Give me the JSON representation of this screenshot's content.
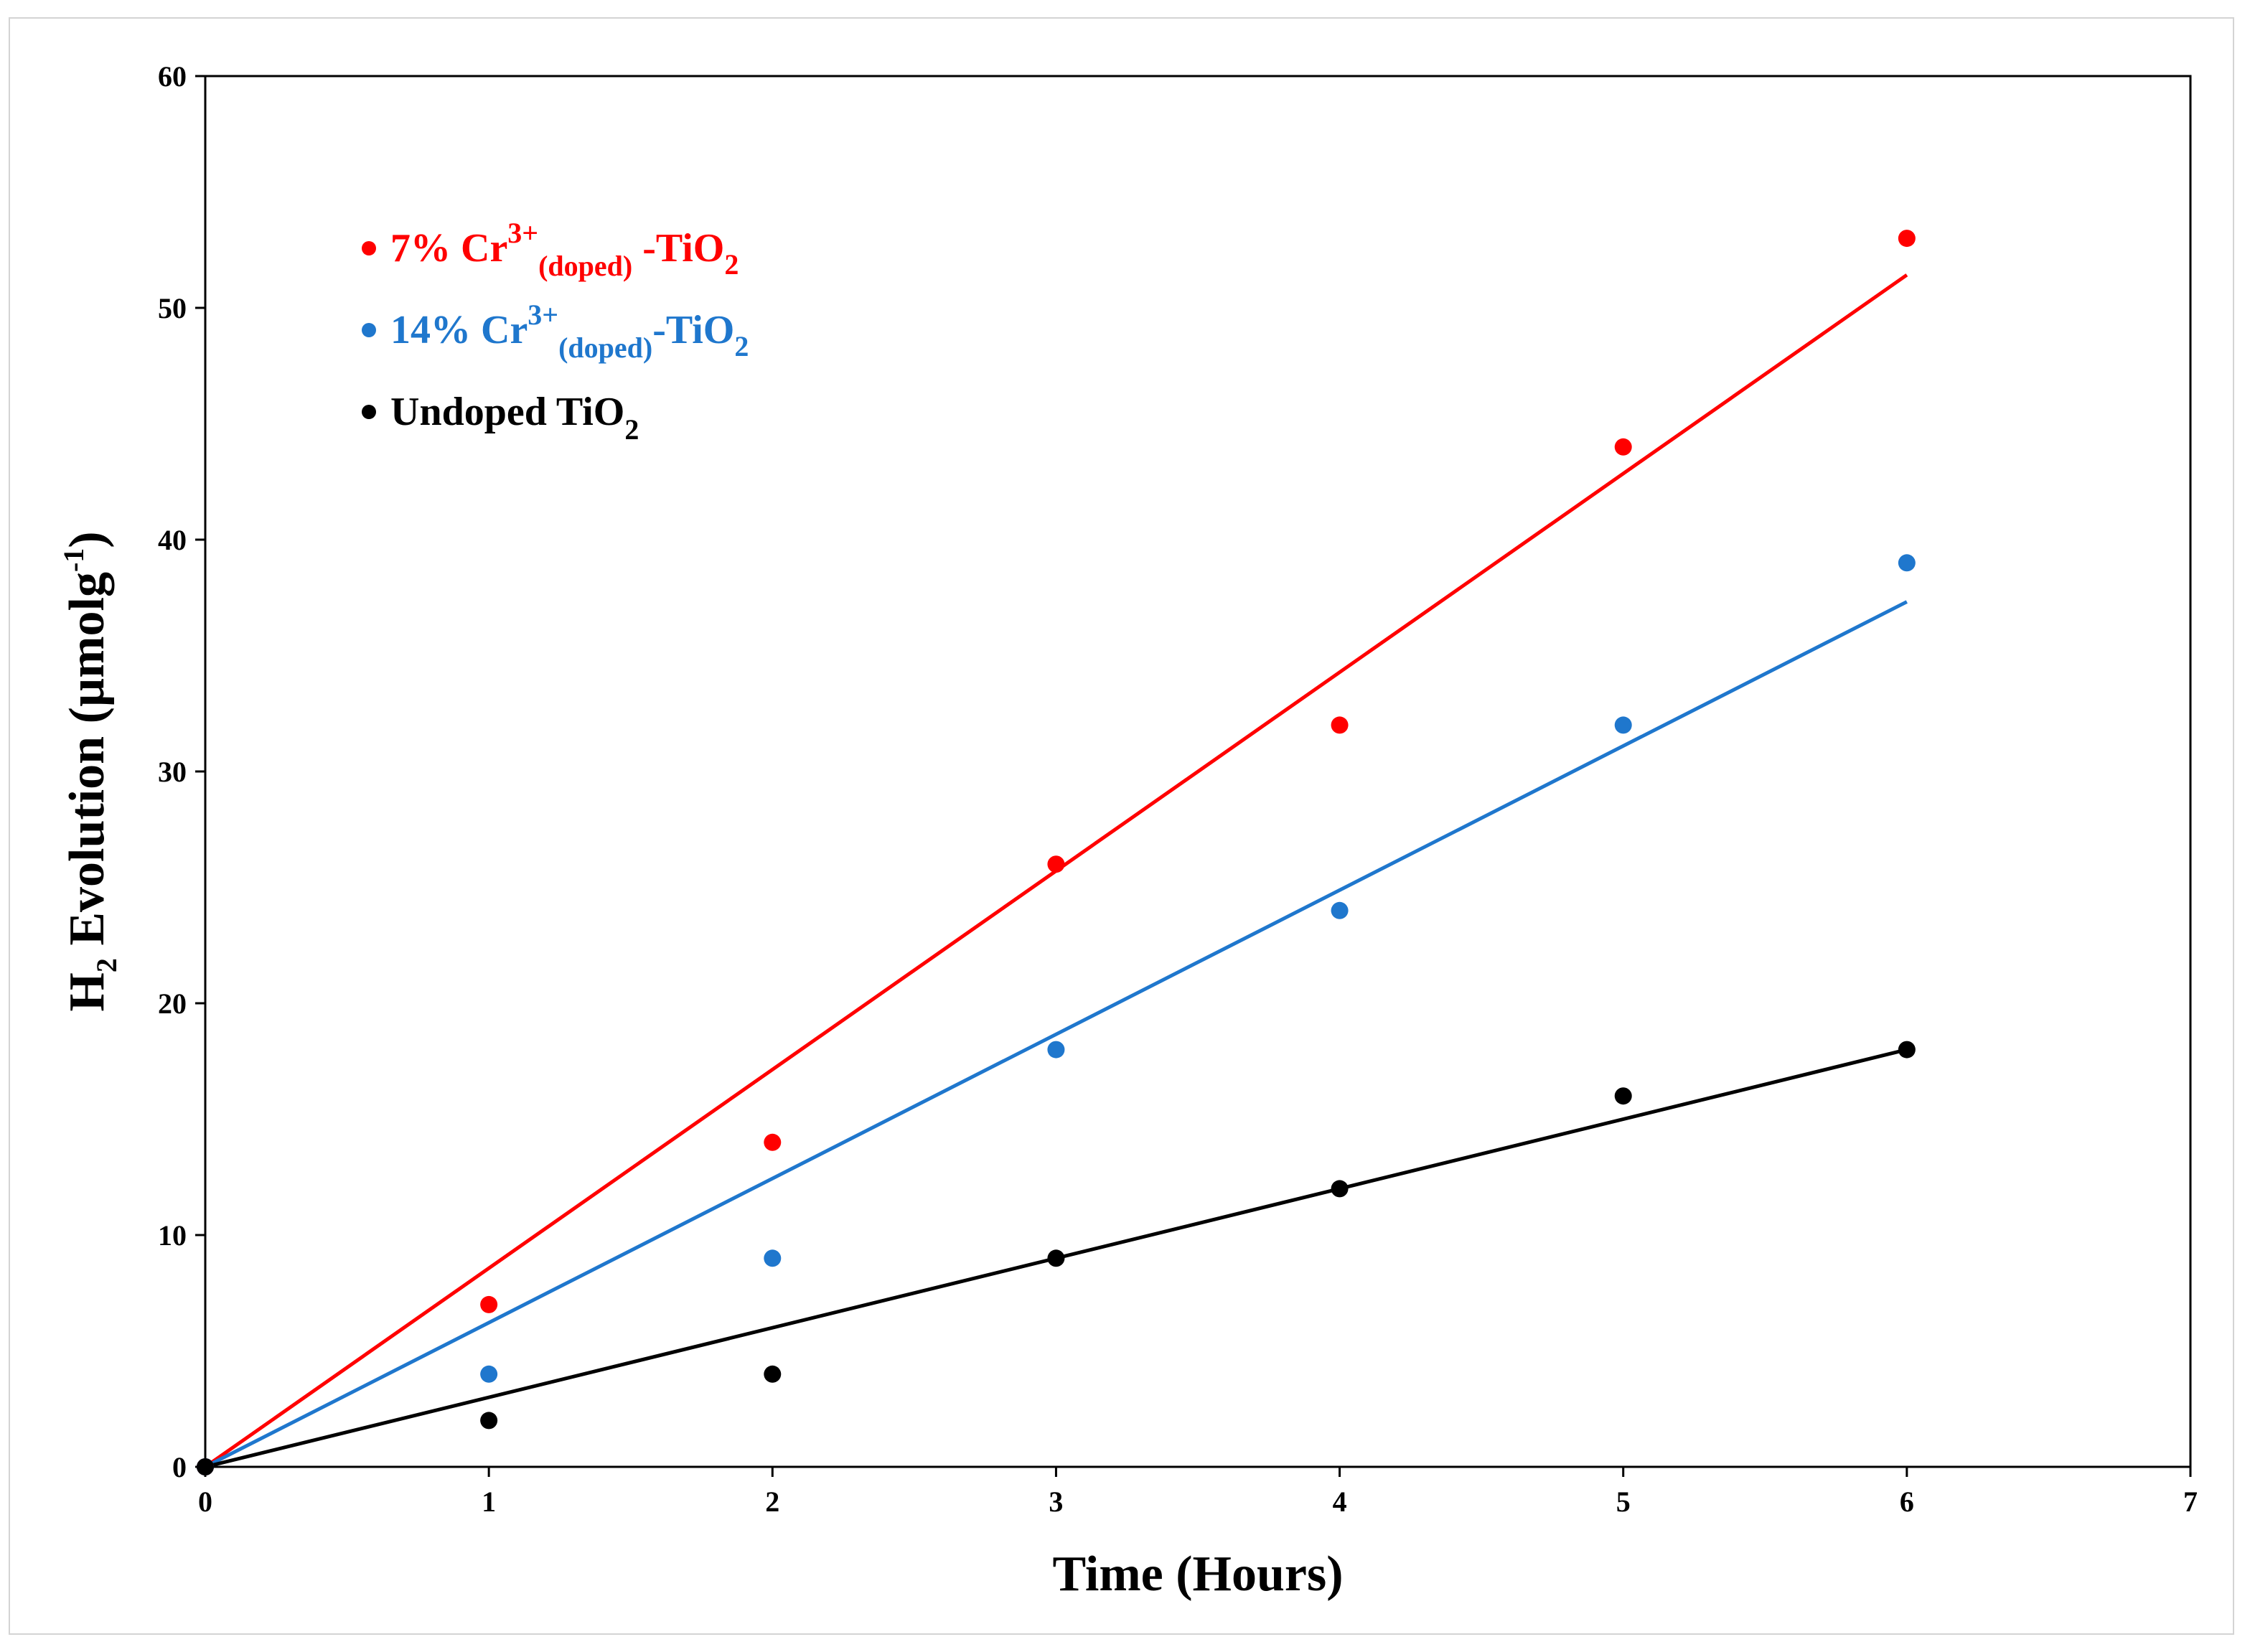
{
  "chart_data": {
    "type": "scatter",
    "title": "",
    "xlabel": "Time (Hours)",
    "ylabel": "H2 Evolution (µmolg-1)",
    "ylabel_parts": {
      "base": "H",
      "sub": "2",
      "main": " Evolution (µmolg",
      "sup": "-1",
      "end": ")"
    },
    "xlim": [
      0,
      7
    ],
    "ylim": [
      0,
      60
    ],
    "xticks": [
      0,
      1,
      2,
      3,
      4,
      5,
      6,
      7
    ],
    "yticks": [
      0,
      10,
      20,
      30,
      40,
      50,
      60
    ],
    "grid": false,
    "legend_position": "top-left",
    "series": [
      {
        "name": "7% Cr3+(doped) -TiO2",
        "label_parts": {
          "a": "7% Cr",
          "sup": "3+",
          "sub": "(doped)",
          "b": " -TiO",
          "sub2": "2"
        },
        "color": "#ff0000",
        "x": [
          0,
          1,
          2,
          3,
          4,
          5,
          6
        ],
        "y": [
          0,
          7,
          14,
          26,
          32,
          44,
          53
        ],
        "trendline": {
          "type": "linear",
          "intercept_zero": true,
          "slope": 8.57,
          "x_end": 6
        }
      },
      {
        "name": "14% Cr3+(doped)-TiO2",
        "label_parts": {
          "a": "14% Cr",
          "sup": "3+",
          "sub": "(doped)",
          "b": "-TiO",
          "sub2": "2"
        },
        "color": "#1f77cd",
        "x": [
          0,
          1,
          2,
          3,
          4,
          5,
          6
        ],
        "y": [
          0,
          4,
          9,
          18,
          24,
          32,
          39
        ],
        "trendline": {
          "type": "linear",
          "intercept_zero": true,
          "slope": 6.22,
          "x_end": 6
        }
      },
      {
        "name": "Undoped TiO2",
        "label_parts": {
          "a": "Undoped TiO",
          "sup": "",
          "sub": "2",
          "b": "",
          "sub2": ""
        },
        "color": "#000000",
        "x": [
          0,
          1,
          2,
          3,
          4,
          5,
          6
        ],
        "y": [
          0,
          2,
          4,
          9,
          12,
          16,
          18
        ],
        "trendline": {
          "type": "linear",
          "intercept_zero": true,
          "slope": 3.0,
          "x_end": 6
        }
      }
    ]
  }
}
